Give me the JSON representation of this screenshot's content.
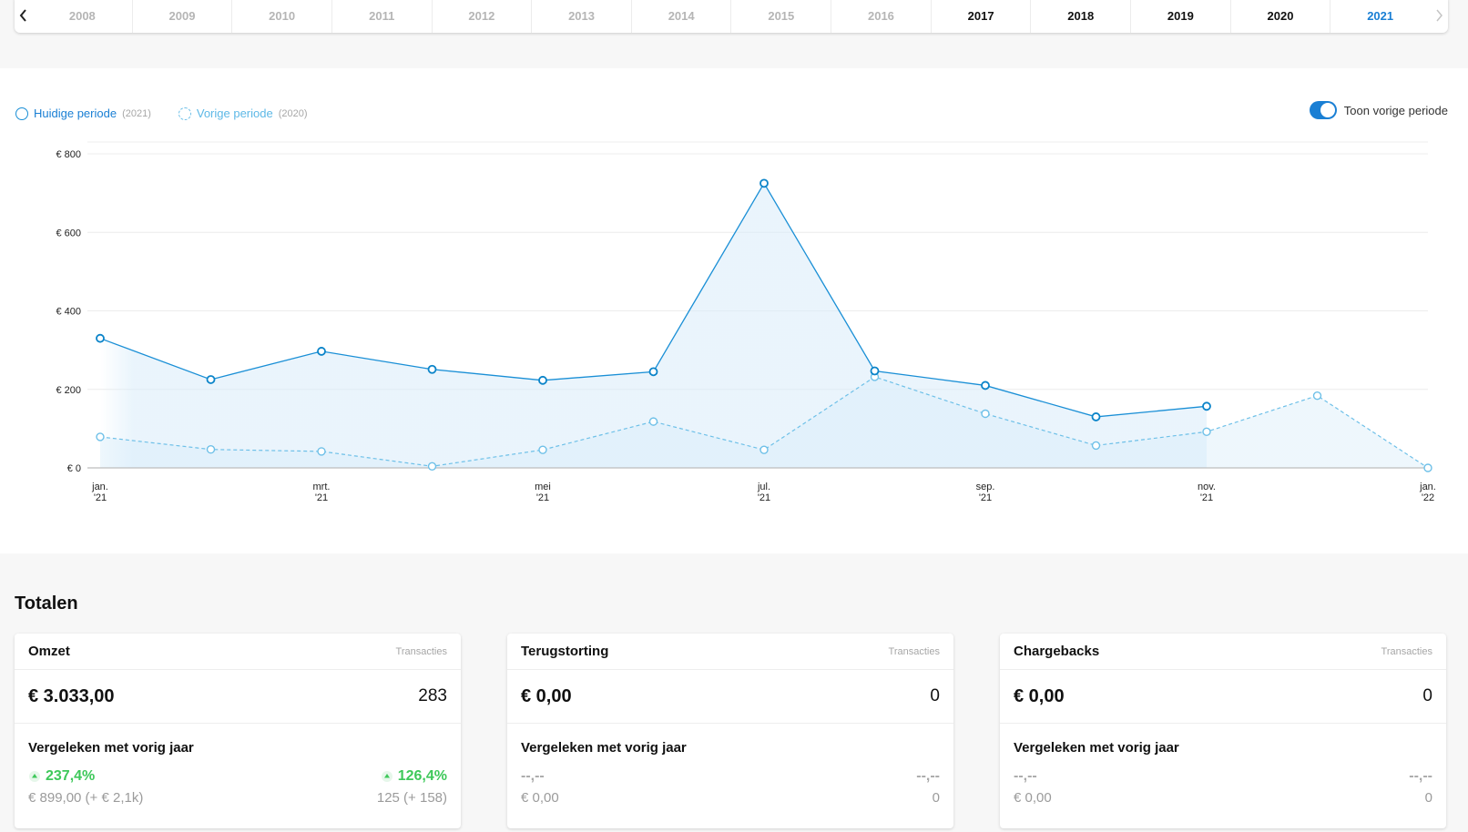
{
  "year_bar": {
    "prev_icon": "chevron-left-icon",
    "next_icon": "chevron-right-icon",
    "years": [
      {
        "label": "2008",
        "state": "disabled"
      },
      {
        "label": "2009",
        "state": "disabled"
      },
      {
        "label": "2010",
        "state": "disabled"
      },
      {
        "label": "2011",
        "state": "disabled"
      },
      {
        "label": "2012",
        "state": "disabled"
      },
      {
        "label": "2013",
        "state": "disabled"
      },
      {
        "label": "2014",
        "state": "disabled"
      },
      {
        "label": "2015",
        "state": "disabled"
      },
      {
        "label": "2016",
        "state": "disabled"
      },
      {
        "label": "2017",
        "state": "enabled"
      },
      {
        "label": "2018",
        "state": "enabled"
      },
      {
        "label": "2019",
        "state": "enabled"
      },
      {
        "label": "2020",
        "state": "enabled"
      },
      {
        "label": "2021",
        "state": "active"
      }
    ]
  },
  "legend": {
    "current_label": "Huidige periode",
    "current_year": "(2021)",
    "previous_label": "Vorige periode",
    "previous_year": "(2020)"
  },
  "toggle": {
    "label": "Toon vorige periode",
    "on": true
  },
  "colors": {
    "accent": "#1a7fd4",
    "current_line": "#1a8fd6",
    "previous_line": "#6ec0e8",
    "positive": "#3ec85a",
    "muted": "#9b9b9b"
  },
  "chart_data": {
    "type": "line",
    "x": [
      "2021-01",
      "2021-02",
      "2021-03",
      "2021-04",
      "2021-05",
      "2021-06",
      "2021-07",
      "2021-08",
      "2021-09",
      "2021-10",
      "2021-11",
      "2021-12",
      "2022-01"
    ],
    "x_tick_labels": [
      {
        "month": "jan.",
        "year": "'21",
        "index": 0
      },
      {
        "month": "mrt.",
        "year": "'21",
        "index": 2
      },
      {
        "month": "mei",
        "year": "'21",
        "index": 4
      },
      {
        "month": "jul.",
        "year": "'21",
        "index": 6
      },
      {
        "month": "sep.",
        "year": "'21",
        "index": 8
      },
      {
        "month": "nov.",
        "year": "'21",
        "index": 10
      },
      {
        "month": "jan.",
        "year": "'22",
        "index": 12
      }
    ],
    "y_ticks": [
      {
        "value": 0,
        "label": "€ 0"
      },
      {
        "value": 200,
        "label": "€ 200"
      },
      {
        "value": 400,
        "label": "€ 400"
      },
      {
        "value": 600,
        "label": "€ 600"
      },
      {
        "value": 800,
        "label": "€ 800"
      }
    ],
    "ylim": [
      0,
      800
    ],
    "grid": true,
    "series": [
      {
        "name": "Huidige periode",
        "style": "solid",
        "values": [
          330,
          225,
          297,
          251,
          223,
          245,
          725,
          247,
          210,
          130,
          157,
          null,
          null
        ]
      },
      {
        "name": "Vorige periode",
        "style": "dashed",
        "values": [
          79,
          47,
          42,
          4,
          46,
          118,
          46,
          232,
          138,
          57,
          92,
          184,
          0
        ]
      }
    ]
  },
  "totals": {
    "title": "Totalen",
    "cards": [
      {
        "title": "Omzet",
        "sub": "Transacties",
        "amount": "€ 3.033,00",
        "count": "283",
        "compare_title": "Vergeleken met vorig jaar",
        "pct_left": "237,4%",
        "pct_right": "126,4%",
        "prev_left": "€ 899,00 (+ € 2,1k)",
        "prev_right": "125 (+ 158)",
        "trend": "up"
      },
      {
        "title": "Terugstorting",
        "sub": "Transacties",
        "amount": "€ 0,00",
        "count": "0",
        "compare_title": "Vergeleken met vorig jaar",
        "pct_left": "--,--",
        "pct_right": "--,--",
        "prev_left": "€ 0,00",
        "prev_right": "0",
        "trend": "none"
      },
      {
        "title": "Chargebacks",
        "sub": "Transacties",
        "amount": "€ 0,00",
        "count": "0",
        "compare_title": "Vergeleken met vorig jaar",
        "pct_left": "--,--",
        "pct_right": "--,--",
        "prev_left": "€ 0,00",
        "prev_right": "0",
        "trend": "none"
      }
    ]
  }
}
